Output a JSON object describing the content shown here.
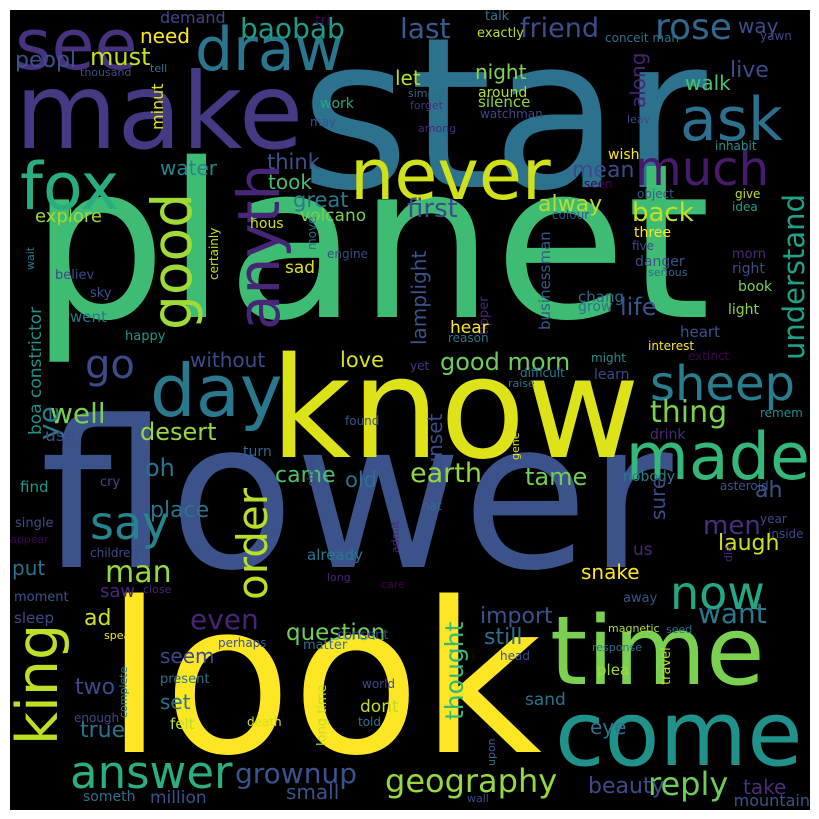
{
  "background_color": "#000000",
  "border_color": "#ffffff",
  "words": [
    {
      "text": "star",
      "color": "#2c728e"
    },
    {
      "text": "planet",
      "color": "#3fbc73"
    },
    {
      "text": "flower",
      "color": "#3b528b"
    },
    {
      "text": "look",
      "color": "#fde725"
    },
    {
      "text": "know",
      "color": "#dde318"
    },
    {
      "text": "make",
      "color": "#443a83"
    },
    {
      "text": "time",
      "color": "#7ad151"
    },
    {
      "text": "come",
      "color": "#21918c"
    },
    {
      "text": "never",
      "color": "#d0e11c"
    },
    {
      "text": "day",
      "color": "#2a788e"
    },
    {
      "text": "see",
      "color": "#46327e"
    },
    {
      "text": "fox",
      "color": "#28ae80"
    },
    {
      "text": "made",
      "color": "#35b779"
    },
    {
      "text": "much",
      "color": "#481a6c"
    },
    {
      "text": "ask",
      "color": "#2d708e"
    },
    {
      "text": "draw",
      "color": "#2a768e"
    },
    {
      "text": "sheep",
      "color": "#287d8e"
    },
    {
      "text": "king",
      "color": "#bddf26"
    },
    {
      "text": "answer",
      "color": "#2ab07f"
    },
    {
      "text": "now",
      "color": "#22a884"
    },
    {
      "text": "say",
      "color": "#25858e"
    },
    {
      "text": "rose",
      "color": "#31688e"
    },
    {
      "text": "good",
      "color": "#a0da39"
    },
    {
      "text": "anyth",
      "color": "#482677"
    },
    {
      "text": "go",
      "color": "#3e4a89"
    },
    {
      "text": "order",
      "color": "#b8de29"
    },
    {
      "text": "reply",
      "color": "#6ccd5a"
    },
    {
      "text": "geography",
      "color": "#95d840"
    },
    {
      "text": "grownup",
      "color": "#3b528b"
    },
    {
      "text": "understand",
      "color": "#1fa187"
    },
    {
      "text": "friend",
      "color": "#3e4c8a"
    },
    {
      "text": "last",
      "color": "#365c8d"
    },
    {
      "text": "baobab",
      "color": "#1e9c89"
    },
    {
      "text": "need",
      "color": "#fde725"
    },
    {
      "text": "must",
      "color": "#c2df23"
    },
    {
      "text": "peopl",
      "color": "#3b528b"
    },
    {
      "text": "demand",
      "color": "#404688"
    },
    {
      "text": "tri",
      "color": "#440154"
    },
    {
      "text": "talk",
      "color": "#2a788e"
    },
    {
      "text": "exactly",
      "color": "#c2df23"
    },
    {
      "text": "conceit man",
      "color": "#2c728e"
    },
    {
      "text": "way",
      "color": "#3e4c8a"
    },
    {
      "text": "yawn",
      "color": "#404688"
    },
    {
      "text": "thousand",
      "color": "#3e4a89"
    },
    {
      "text": "tell",
      "color": "#2a788e"
    },
    {
      "text": "night",
      "color": "#84d44b"
    },
    {
      "text": "let",
      "color": "#b5de2b"
    },
    {
      "text": "along",
      "color": "#482475"
    },
    {
      "text": "live",
      "color": "#3e4a89"
    },
    {
      "text": "walk",
      "color": "#4ac16d"
    },
    {
      "text": "around",
      "color": "#b5de2b"
    },
    {
      "text": "simple",
      "color": "#31688e"
    },
    {
      "text": "silence",
      "color": "#8ed645"
    },
    {
      "text": "forget",
      "color": "#46327e"
    },
    {
      "text": "watchman",
      "color": "#404688"
    },
    {
      "text": "among",
      "color": "#482878"
    },
    {
      "text": "leav",
      "color": "#3e4a89"
    },
    {
      "text": "minut",
      "color": "#e5e419"
    },
    {
      "text": "work",
      "color": "#22a884"
    },
    {
      "text": "may",
      "color": "#3b528b"
    },
    {
      "text": "inhabit",
      "color": "#20928c"
    },
    {
      "text": "wish",
      "color": "#fde725"
    },
    {
      "text": "seen",
      "color": "#440154"
    },
    {
      "text": "object",
      "color": "#39568c"
    },
    {
      "text": "give",
      "color": "#c2df23"
    },
    {
      "text": "idea",
      "color": "#1fa188"
    },
    {
      "text": "colour",
      "color": "#3b528b"
    },
    {
      "text": "water",
      "color": "#25858e"
    },
    {
      "text": "think",
      "color": "#3b528b"
    },
    {
      "text": "took",
      "color": "#44bf70"
    },
    {
      "text": "mean",
      "color": "#3e4a89"
    },
    {
      "text": "great",
      "color": "#29798e"
    },
    {
      "text": "first",
      "color": "#3e4a89"
    },
    {
      "text": "explore",
      "color": "#a0da39"
    },
    {
      "text": "alway",
      "color": "#b8de29"
    },
    {
      "text": "back",
      "color": "#c2df23"
    },
    {
      "text": "volcano",
      "color": "#7ad151"
    },
    {
      "text": "hous",
      "color": "#d2e21b"
    },
    {
      "text": "move",
      "color": "#31688e"
    },
    {
      "text": "three",
      "color": "#fde725"
    },
    {
      "text": "five",
      "color": "#3e4989"
    },
    {
      "text": "danger",
      "color": "#3b528b"
    },
    {
      "text": "serious",
      "color": "#31688e"
    },
    {
      "text": "morn",
      "color": "#482878"
    },
    {
      "text": "right",
      "color": "#3e4c8a"
    },
    {
      "text": "certainly",
      "color": "#c8e020"
    },
    {
      "text": "wait",
      "color": "#2a788e"
    },
    {
      "text": "businessman",
      "color": "#38588c"
    },
    {
      "text": "engine",
      "color": "#3e4a89"
    },
    {
      "text": "lamplight",
      "color": "#3b528b"
    },
    {
      "text": "sad",
      "color": "#dde318"
    },
    {
      "text": "chang",
      "color": "#2e6d8e"
    },
    {
      "text": "book",
      "color": "#7ad151"
    },
    {
      "text": "believ",
      "color": "#3e4989"
    },
    {
      "text": "tipper",
      "color": "#482475"
    },
    {
      "text": "sky",
      "color": "#3b528b"
    },
    {
      "text": "grow",
      "color": "#2c728e"
    },
    {
      "text": "light",
      "color": "#8bd646"
    },
    {
      "text": "life",
      "color": "#3b528b"
    },
    {
      "text": "went",
      "color": "#2c728e"
    },
    {
      "text": "hear",
      "color": "#fde725"
    },
    {
      "text": "happy",
      "color": "#1f968b"
    },
    {
      "text": "reason",
      "color": "#2d708e"
    },
    {
      "text": "heart",
      "color": "#3b528b"
    },
    {
      "text": "interest",
      "color": "#fde725"
    },
    {
      "text": "extinct",
      "color": "#440154"
    },
    {
      "text": "boa constrictor",
      "color": "#21918c"
    },
    {
      "text": "without",
      "color": "#3e4a89"
    },
    {
      "text": "love",
      "color": "#d8e219"
    },
    {
      "text": "good morn",
      "color": "#6ccd5a"
    },
    {
      "text": "raise",
      "color": "#2c728e"
    },
    {
      "text": "might",
      "color": "#228c8d"
    },
    {
      "text": "yet",
      "color": "#443983"
    },
    {
      "text": "difficult",
      "color": "#2a788e"
    },
    {
      "text": "learn",
      "color": "#3e4989"
    },
    {
      "text": "well",
      "color": "#7ad151"
    },
    {
      "text": "thing",
      "color": "#7ad151"
    },
    {
      "text": "remem",
      "color": "#228d8d"
    },
    {
      "text": "desert",
      "color": "#95d840"
    },
    {
      "text": "found",
      "color": "#3b528b"
    },
    {
      "text": "ye",
      "color": "#2a788e"
    },
    {
      "text": "use",
      "color": "#3e4a89"
    },
    {
      "text": "drink",
      "color": "#482878"
    },
    {
      "text": "turn",
      "color": "#32658e"
    },
    {
      "text": "sunset",
      "color": "#3e4a89"
    },
    {
      "text": "gene",
      "color": "#dde318"
    },
    {
      "text": "oh",
      "color": "#2c728e"
    },
    {
      "text": "came",
      "color": "#4ac16d"
    },
    {
      "text": "old",
      "color": "#2c728e"
    },
    {
      "text": "earth",
      "color": "#93d741"
    },
    {
      "text": "tame",
      "color": "#6ece58"
    },
    {
      "text": "ah",
      "color": "#3b528b"
    },
    {
      "text": "find",
      "color": "#1f968b"
    },
    {
      "text": "cry",
      "color": "#3e4a89"
    },
    {
      "text": "show",
      "color": "#3e4a89"
    },
    {
      "text": "nobody",
      "color": "#287d8e"
    },
    {
      "text": "asteroid",
      "color": "#3b528b"
    },
    {
      "text": "place",
      "color": "#2c728e"
    },
    {
      "text": "sure",
      "color": "#3e4a89"
    },
    {
      "text": "hat",
      "color": "#31688e"
    },
    {
      "text": "year",
      "color": "#3e4a89"
    },
    {
      "text": "inside",
      "color": "#3e4a89"
    },
    {
      "text": "single",
      "color": "#3e4a89"
    },
    {
      "text": "men",
      "color": "#472f7d"
    },
    {
      "text": "appear",
      "color": "#440154"
    },
    {
      "text": "children",
      "color": "#3e4a89"
    },
    {
      "text": "admit",
      "color": "#482878"
    },
    {
      "text": "laugh",
      "color": "#d0e11c"
    },
    {
      "text": "us",
      "color": "#482475"
    },
    {
      "text": "die",
      "color": "#482878"
    },
    {
      "text": "man",
      "color": "#95d840"
    },
    {
      "text": "already",
      "color": "#2a788e"
    },
    {
      "text": "put",
      "color": "#2c728e"
    },
    {
      "text": "long",
      "color": "#482475"
    },
    {
      "text": "care",
      "color": "#440154"
    },
    {
      "text": "snake",
      "color": "#fde725"
    },
    {
      "text": "saw",
      "color": "#482878"
    },
    {
      "text": "close",
      "color": "#482475"
    },
    {
      "text": "moment",
      "color": "#3b528b"
    },
    {
      "text": "away",
      "color": "#3b528b"
    },
    {
      "text": "sleep",
      "color": "#3e4989"
    },
    {
      "text": "ad",
      "color": "#d2e21b"
    },
    {
      "text": "even",
      "color": "#482475"
    },
    {
      "text": "question",
      "color": "#6ece58"
    },
    {
      "text": "import",
      "color": "#3b528b"
    },
    {
      "text": "want",
      "color": "#2a788e"
    },
    {
      "text": "speak",
      "color": "#fde725"
    },
    {
      "text": "perhaps",
      "color": "#3b528b"
    },
    {
      "text": "matter",
      "color": "#2c728e"
    },
    {
      "text": "consent",
      "color": "#3e4a89"
    },
    {
      "text": "still",
      "color": "#2c728e"
    },
    {
      "text": "magnetic",
      "color": "#b5de2b"
    },
    {
      "text": "seed",
      "color": "#2c728e"
    },
    {
      "text": "head",
      "color": "#3e4a89"
    },
    {
      "text": "response",
      "color": "#2c728e"
    },
    {
      "text": "seem",
      "color": "#3e4a89"
    },
    {
      "text": "plea",
      "color": "#a0da39"
    },
    {
      "text": "travel",
      "color": "#c2df23"
    },
    {
      "text": "two",
      "color": "#3e4a89"
    },
    {
      "text": "present",
      "color": "#2c728e"
    },
    {
      "text": "world",
      "color": "#3e4a89"
    },
    {
      "text": "thought",
      "color": "#37b878"
    },
    {
      "text": "set",
      "color": "#2c728e"
    },
    {
      "text": "dont",
      "color": "#b8de29"
    },
    {
      "text": "sand",
      "color": "#2c728e"
    },
    {
      "text": "complete",
      "color": "#2a788e"
    },
    {
      "text": "true",
      "color": "#2c728e"
    },
    {
      "text": "enough",
      "color": "#3e4a89"
    },
    {
      "text": "felt",
      "color": "#b8de29"
    },
    {
      "text": "death",
      "color": "#d2e21b"
    },
    {
      "text": "long time",
      "color": "#c2df23"
    },
    {
      "text": "told",
      "color": "#2c728e"
    },
    {
      "text": "eye",
      "color": "#2c728e"
    },
    {
      "text": "upon",
      "color": "#31688e"
    },
    {
      "text": "beauty",
      "color": "#3e4a89"
    },
    {
      "text": "take",
      "color": "#472f7d"
    },
    {
      "text": "small",
      "color": "#3b528b"
    },
    {
      "text": "million",
      "color": "#3b528b"
    },
    {
      "text": "someth",
      "color": "#2c728e"
    },
    {
      "text": "wall",
      "color": "#3e4a89"
    },
    {
      "text": "mountain",
      "color": "#3b528b"
    }
  ]
}
